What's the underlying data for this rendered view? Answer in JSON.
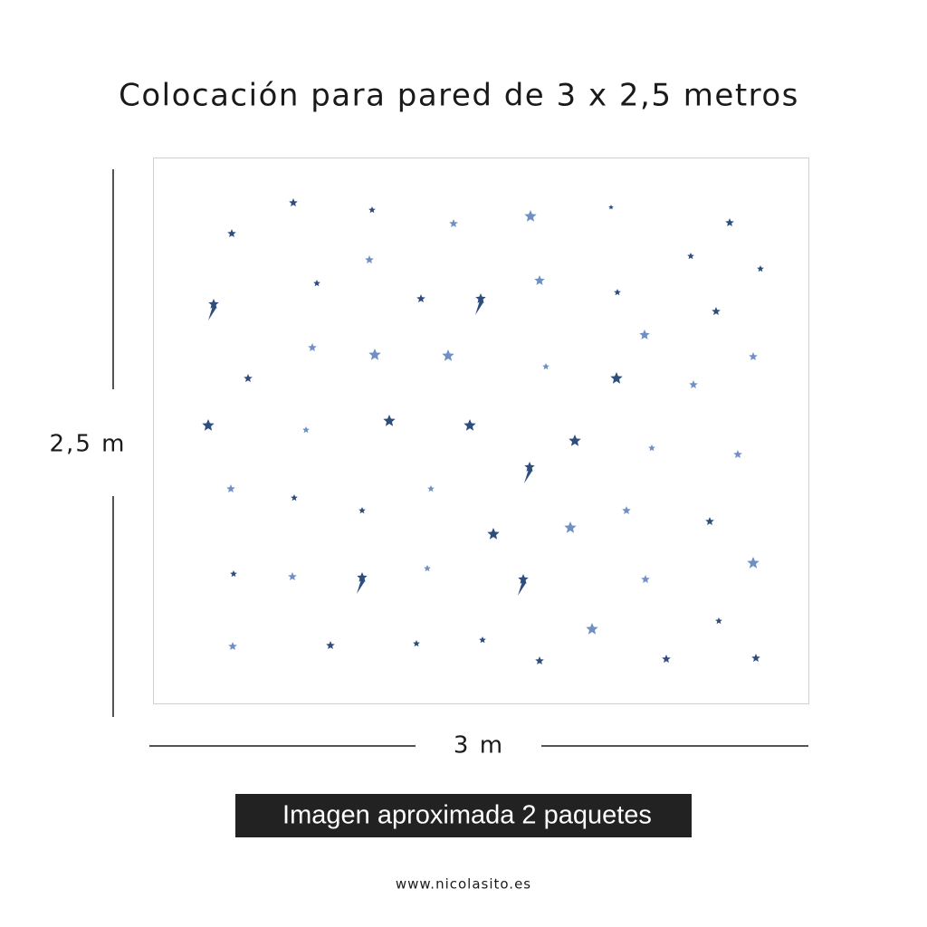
{
  "header": {
    "title": "Colocación para pared de 3 x 2,5 metros"
  },
  "dimensions": {
    "height": "2,5 m",
    "width": "3 m"
  },
  "banner": "Imagen aproximada 2 paquetes",
  "footer": {
    "website": "www.nicolasito.es"
  }
}
